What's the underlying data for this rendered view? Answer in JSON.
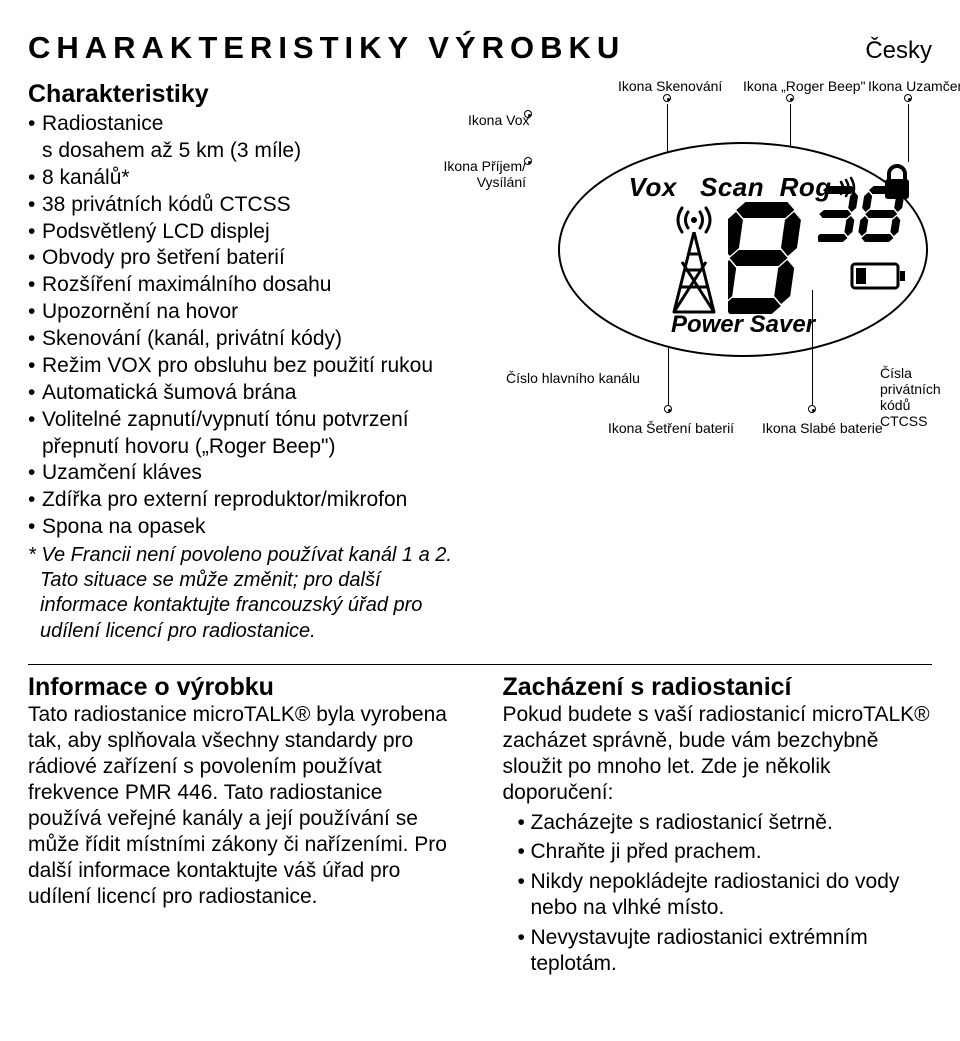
{
  "header": {
    "title": "CHARAKTERISTIKY VÝROBKU",
    "language": "Česky"
  },
  "features": {
    "subtitle": "Charakteristiky",
    "items": [
      "Radiostanice\ns dosahem až 5 km (3 míle)",
      "8 kanálů*",
      "38 privátních kódů CTCSS",
      "Podsvětlený LCD displej",
      "Obvody pro šetření baterií",
      "Rozšíření maximálního dosahu",
      "Upozornění na hovor",
      "Skenování (kanál, privátní kódy)",
      "Režim VOX pro obsluhu bez použití rukou",
      "Automatická šumová brána",
      "Volitelné zapnutí/vypnutí tónu potvrzení přepnutí hovoru („Roger Beep\")",
      "Uzamčení kláves",
      "Zdířka pro externí reproduktor/mikrofon",
      "Spona na opasek"
    ],
    "footnote": "* Ve Francii není povoleno používat kanál 1 a 2. Tato situace se může změnit; pro další informace kontaktujte francouzský úřad pro udílení licencí pro radiostanice."
  },
  "diagram": {
    "labels": {
      "vox": "Ikona Vox",
      "rxtx": "Ikona Příjem/\nVysílání",
      "scan": "Ikona Skenování",
      "roger": "Ikona „Roger Beep\"",
      "lock": "Ikona Uzamčení",
      "main_channel": "Číslo hlavního kanálu",
      "batt_save": "Ikona Šetření baterií",
      "low_batt": "Ikona Slabé baterie",
      "ctcss": "Čísla privátních\nkódů CTCSS"
    },
    "lcd": {
      "vox": "Vox",
      "scan": "Scan",
      "rog": "Rog",
      "power_saver": "Power Saver",
      "main_digit": "8",
      "sub_digits": "38"
    },
    "colors": {
      "stroke": "#000000",
      "background": "#ffffff"
    }
  },
  "product_info": {
    "heading": "Informace o výrobku",
    "text": "Tato radiostanice microTALK® byla vyrobena tak, aby splňovala všechny standardy pro rádiové zařízení s povolením používat frekvence PMR 446. Tato radiostanice používá veřejné kanály a její používání se může řídit místními zákony či nařízeními. Pro další informace kontaktujte váš úřad pro udílení licencí pro radiostanice."
  },
  "care": {
    "heading": "Zacházení s radiostanicí",
    "intro": "Pokud budete s vaší radiostanicí microTALK® zacházet správně, bude vám bezchybně sloužit po mnoho let. Zde je několik doporučení:",
    "items": [
      "Zacházejte s radiostanicí šetrně.",
      "Chraňte ji před prachem.",
      "Nikdy nepokládejte radiostanici do vody nebo na vlhké místo.",
      "Nevystavujte radiostanici extrémním teplotám."
    ]
  }
}
